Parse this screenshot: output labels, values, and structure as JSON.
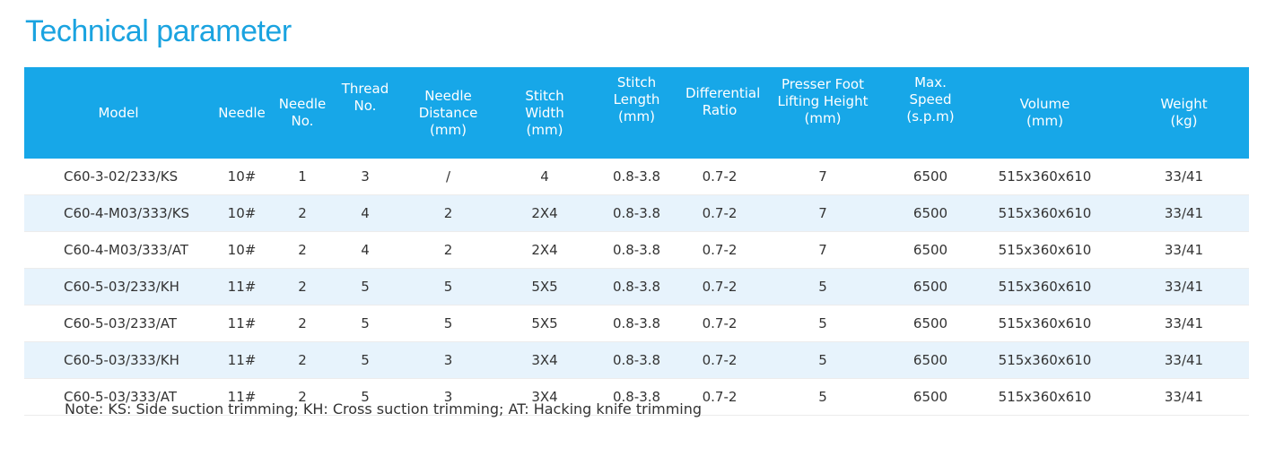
{
  "title": "Technical parameter",
  "table": {
    "headers": [
      [
        "Model"
      ],
      [
        "Needle"
      ],
      [
        "Needle",
        "No."
      ],
      [
        "Thread",
        "No."
      ],
      [
        "Needle",
        "Distance",
        "(mm)"
      ],
      [
        "Stitch",
        "Width",
        "(mm)"
      ],
      [
        "Stitch",
        "Length",
        "(mm)"
      ],
      [
        "Differential",
        "Ratio"
      ],
      [
        "Presser Foot",
        "Lifting Height",
        "(mm)"
      ],
      [
        "Max.",
        "Speed",
        "(s.p.m)"
      ],
      [
        "Volume",
        "(mm)"
      ],
      [
        "Weight",
        "(kg)"
      ]
    ],
    "rows": [
      [
        "C60-3-02/233/KS",
        "10#",
        "1",
        "3",
        "/",
        "4",
        "0.8-3.8",
        "0.7-2",
        "7",
        "6500",
        "515x360x610",
        "33/41"
      ],
      [
        "C60-4-M03/333/KS",
        "10#",
        "2",
        "4",
        "2",
        "2X4",
        "0.8-3.8",
        "0.7-2",
        "7",
        "6500",
        "515x360x610",
        "33/41"
      ],
      [
        "C60-4-M03/333/AT",
        "10#",
        "2",
        "4",
        "2",
        "2X4",
        "0.8-3.8",
        "0.7-2",
        "7",
        "6500",
        "515x360x610",
        "33/41"
      ],
      [
        "C60-5-03/233/KH",
        "11#",
        "2",
        "5",
        "5",
        "5X5",
        "0.8-3.8",
        "0.7-2",
        "5",
        "6500",
        "515x360x610",
        "33/41"
      ],
      [
        "C60-5-03/233/AT",
        "11#",
        "2",
        "5",
        "5",
        "5X5",
        "0.8-3.8",
        "0.7-2",
        "5",
        "6500",
        "515x360x610",
        "33/41"
      ],
      [
        "C60-5-03/333/KH",
        "11#",
        "2",
        "5",
        "3",
        "3X4",
        "0.8-3.8",
        "0.7-2",
        "5",
        "6500",
        "515x360x610",
        "33/41"
      ],
      [
        "C60-5-03/333/AT",
        "11#",
        "2",
        "5",
        "3",
        "3X4",
        "0.8-3.8",
        "0.7-2",
        "5",
        "6500",
        "515x360x610",
        "33/41"
      ]
    ]
  },
  "note": "Note: KS: Side suction trimming; KH: Cross suction trimming; AT: Hacking knife trimming"
}
